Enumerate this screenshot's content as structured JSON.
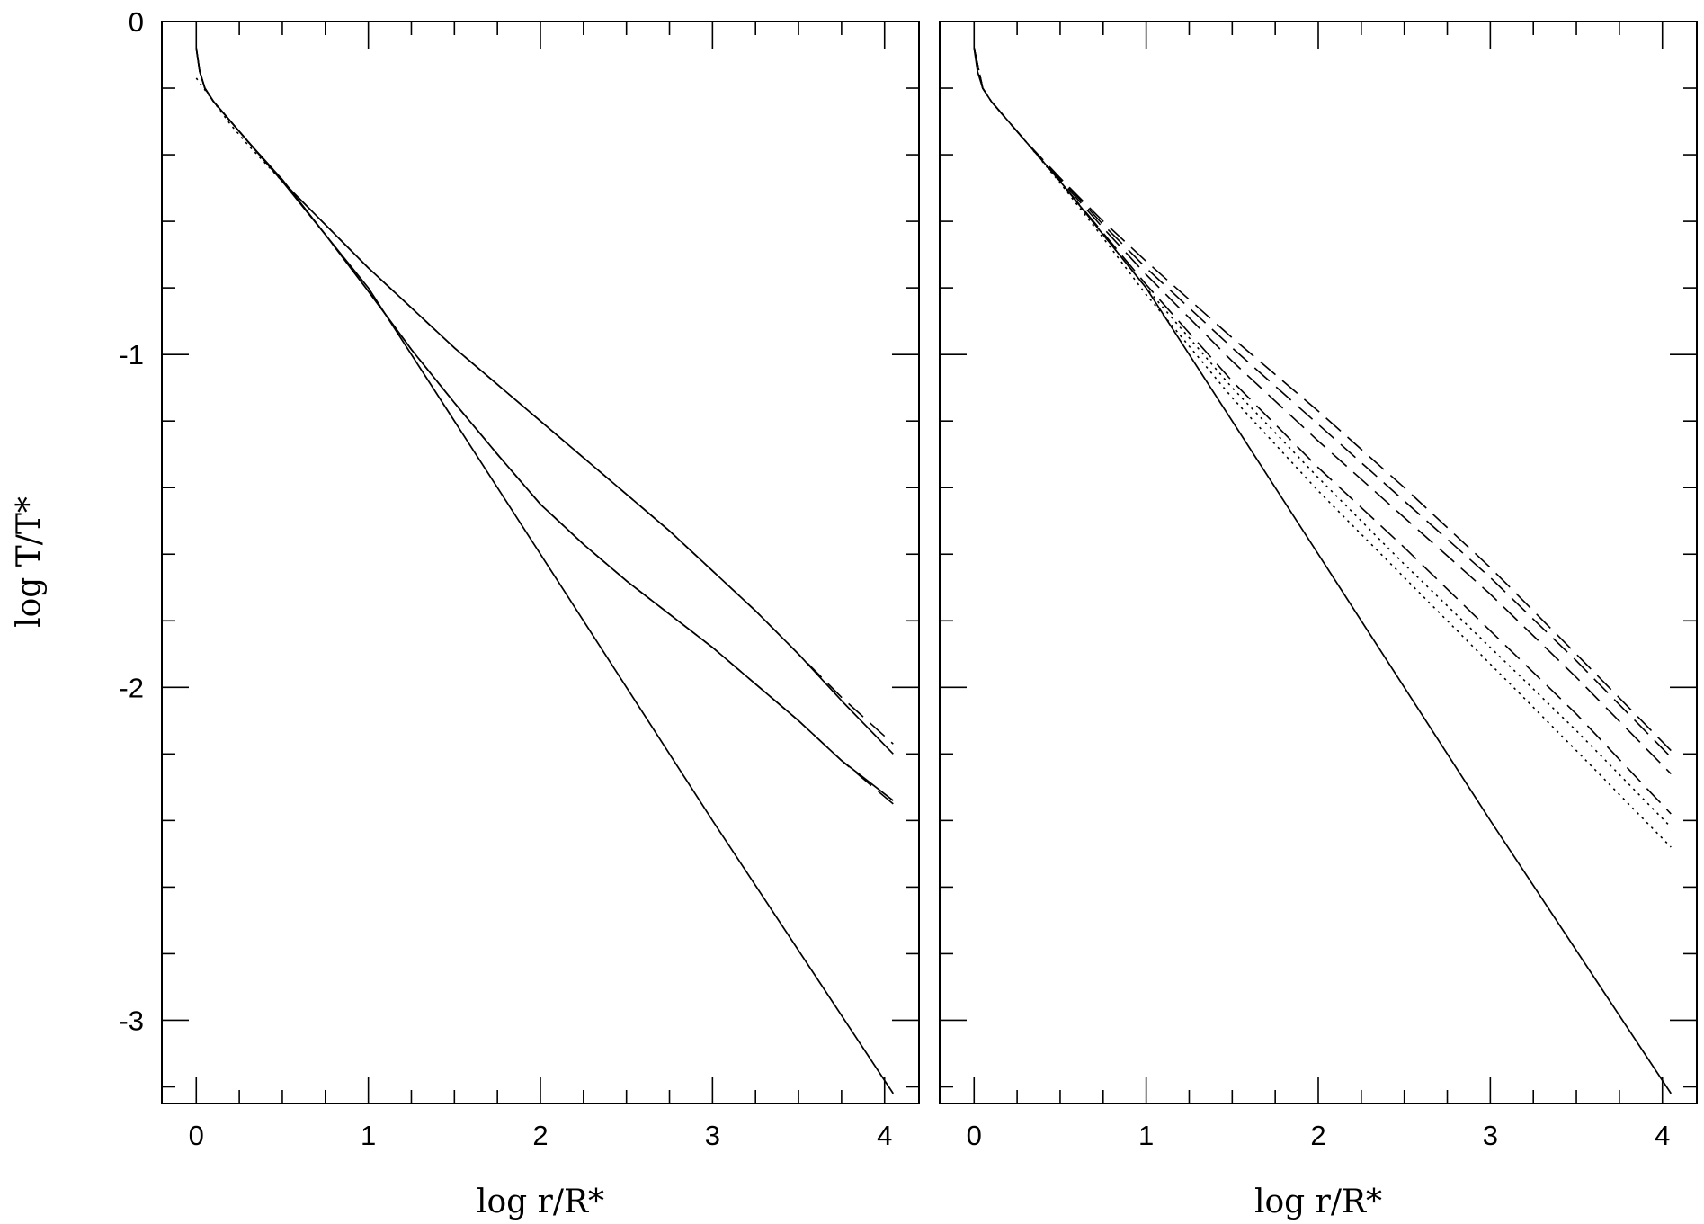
{
  "chart_data": [
    {
      "type": "line",
      "panel": "left",
      "xlabel": "log r/R*",
      "ylabel": "log T/T*",
      "xlim": [
        -0.2,
        4.2
      ],
      "ylim": [
        -3.25,
        0
      ],
      "xticks": [
        0,
        1,
        2,
        3,
        4
      ],
      "xtick_labels": [
        "0",
        "1",
        "2",
        "3",
        "4"
      ],
      "yticks": [
        0,
        -1,
        -2,
        -3
      ],
      "ytick_labels": [
        "0",
        "-1",
        "-2",
        "-3"
      ],
      "grid": false,
      "series": [
        {
          "style": "solid",
          "x": [
            0,
            0.02,
            0.05,
            0.1,
            0.2,
            0.3,
            0.5,
            1.0,
            2.0,
            3.0,
            4.05
          ],
          "y": [
            -0.08,
            -0.15,
            -0.2,
            -0.24,
            -0.3,
            -0.36,
            -0.48,
            -0.8,
            -1.6,
            -2.4,
            -3.22
          ]
        },
        {
          "style": "solid",
          "x": [
            0,
            0.02,
            0.05,
            0.1,
            0.2,
            0.3,
            0.5,
            0.75,
            1.0,
            1.25,
            1.5,
            1.75,
            2.0,
            2.25,
            2.5,
            2.75,
            3.0,
            3.25,
            3.5,
            3.75,
            4.05
          ],
          "y": [
            -0.08,
            -0.15,
            -0.2,
            -0.24,
            -0.3,
            -0.36,
            -0.475,
            -0.64,
            -0.81,
            -0.985,
            -1.145,
            -1.3,
            -1.45,
            -1.57,
            -1.68,
            -1.78,
            -1.88,
            -1.99,
            -2.1,
            -2.22,
            -2.34
          ]
        },
        {
          "style": "solid",
          "x": [
            0,
            0.02,
            0.05,
            0.1,
            0.2,
            0.3,
            0.5,
            0.75,
            1.0,
            1.25,
            1.5,
            1.75,
            2.0,
            2.25,
            2.5,
            2.75,
            3.0,
            3.25,
            3.5,
            3.75,
            4.05
          ],
          "y": [
            -0.08,
            -0.15,
            -0.2,
            -0.24,
            -0.3,
            -0.36,
            -0.48,
            -0.61,
            -0.74,
            -0.86,
            -0.98,
            -1.09,
            -1.2,
            -1.31,
            -1.42,
            -1.53,
            -1.65,
            -1.77,
            -1.9,
            -2.04,
            -2.2
          ]
        },
        {
          "style": "dashed",
          "x": [
            0.05,
            0.1,
            0.2,
            0.3,
            0.5,
            0.75,
            1.0,
            1.25,
            1.5,
            1.75,
            2.0,
            2.25,
            2.5,
            2.75,
            3.0,
            3.25,
            3.5,
            3.75,
            4.05
          ],
          "y": [
            -0.2,
            -0.24,
            -0.3,
            -0.36,
            -0.475,
            -0.64,
            -0.81,
            -0.985,
            -1.145,
            -1.3,
            -1.45,
            -1.57,
            -1.68,
            -1.78,
            -1.88,
            -1.99,
            -2.1,
            -2.22,
            -2.35
          ]
        },
        {
          "style": "dashed",
          "x": [
            0.05,
            0.1,
            0.2,
            0.3,
            0.5,
            0.75,
            1.0,
            1.25,
            1.5,
            1.75,
            2.0,
            2.25,
            2.5,
            2.75,
            3.0,
            3.25,
            3.5,
            3.75,
            4.05
          ],
          "y": [
            -0.2,
            -0.24,
            -0.3,
            -0.36,
            -0.48,
            -0.61,
            -0.74,
            -0.86,
            -0.98,
            -1.09,
            -1.2,
            -1.31,
            -1.42,
            -1.53,
            -1.65,
            -1.77,
            -1.9,
            -2.03,
            -2.17
          ]
        },
        {
          "style": "dotted",
          "x": [
            0,
            0.1,
            0.2,
            0.3,
            0.5
          ],
          "y": [
            -0.17,
            -0.24,
            -0.31,
            -0.37,
            -0.48
          ]
        }
      ]
    },
    {
      "type": "line",
      "panel": "right",
      "xlabel": "log r/R*",
      "xlim": [
        -0.2,
        4.2
      ],
      "ylim": [
        -3.25,
        0
      ],
      "xticks": [
        0,
        1,
        2,
        3,
        4
      ],
      "xtick_labels": [
        "0",
        "1",
        "2",
        "3",
        "4"
      ],
      "yticks": [
        0,
        -1,
        -2,
        -3
      ],
      "grid": false,
      "series": [
        {
          "style": "solid",
          "x": [
            0,
            0.02,
            0.05,
            0.1,
            0.2,
            0.3,
            0.5,
            1.0,
            2.0,
            3.0,
            4.05
          ],
          "y": [
            -0.08,
            -0.15,
            -0.2,
            -0.24,
            -0.3,
            -0.36,
            -0.48,
            -0.8,
            -1.6,
            -2.4,
            -3.22
          ]
        },
        {
          "style": "dashed",
          "x": [
            0,
            0.05,
            0.1,
            0.2,
            0.3,
            0.5,
            0.75,
            1.0,
            1.5,
            2.0,
            2.5,
            3.0,
            3.5,
            4.05
          ],
          "y": [
            -0.08,
            -0.2,
            -0.24,
            -0.3,
            -0.36,
            -0.47,
            -0.6,
            -0.72,
            -0.95,
            -1.17,
            -1.4,
            -1.64,
            -1.9,
            -2.19
          ]
        },
        {
          "style": "dashed",
          "x": [
            0,
            0.05,
            0.1,
            0.2,
            0.3,
            0.5,
            0.75,
            1.0,
            1.5,
            2.0,
            2.5,
            3.0,
            3.5,
            4.05
          ],
          "y": [
            -0.08,
            -0.2,
            -0.24,
            -0.3,
            -0.36,
            -0.47,
            -0.61,
            -0.74,
            -0.98,
            -1.21,
            -1.44,
            -1.67,
            -1.92,
            -2.21
          ]
        },
        {
          "style": "dashed",
          "x": [
            0,
            0.05,
            0.1,
            0.2,
            0.3,
            0.5,
            0.75,
            1.0,
            1.5,
            2.0,
            2.5,
            3.0,
            3.5,
            4.05
          ],
          "y": [
            -0.08,
            -0.2,
            -0.24,
            -0.3,
            -0.36,
            -0.475,
            -0.62,
            -0.76,
            -1.02,
            -1.26,
            -1.49,
            -1.72,
            -1.97,
            -2.26
          ]
        },
        {
          "style": "dashed",
          "x": [
            0,
            0.05,
            0.1,
            0.2,
            0.3,
            0.5,
            0.75,
            1.0,
            1.5,
            2.0,
            2.5,
            3.0,
            3.5,
            4.05
          ],
          "y": [
            -0.08,
            -0.2,
            -0.24,
            -0.3,
            -0.36,
            -0.48,
            -0.635,
            -0.79,
            -1.08,
            -1.34,
            -1.58,
            -1.83,
            -2.08,
            -2.38
          ]
        },
        {
          "style": "dotted",
          "x": [
            0,
            0.05,
            0.1,
            0.2,
            0.3,
            0.5,
            0.75,
            1.0,
            1.5,
            2.0,
            2.5,
            3.0,
            3.5,
            4.05
          ],
          "y": [
            -0.08,
            -0.2,
            -0.24,
            -0.3,
            -0.36,
            -0.48,
            -0.64,
            -0.8,
            -1.1,
            -1.37,
            -1.63,
            -1.88,
            -2.13,
            -2.42
          ]
        },
        {
          "style": "dotted",
          "x": [
            0,
            0.05,
            0.1,
            0.2,
            0.3,
            0.5,
            0.75,
            1.0,
            1.5,
            2.0,
            2.5,
            3.0,
            3.5,
            4.05
          ],
          "y": [
            -0.08,
            -0.2,
            -0.24,
            -0.3,
            -0.36,
            -0.485,
            -0.65,
            -0.82,
            -1.13,
            -1.41,
            -1.67,
            -1.93,
            -2.19,
            -2.48
          ]
        }
      ]
    }
  ]
}
